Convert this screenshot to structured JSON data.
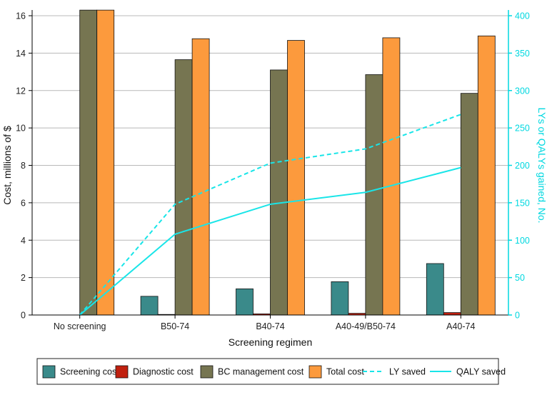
{
  "chart_data": {
    "type": "bar",
    "categories": [
      "No screening",
      "B50-74",
      "B40-74",
      "A40-49/B50-74",
      "A40-74"
    ],
    "series": [
      {
        "name": "Screening cost",
        "kind": "bar",
        "axis": "left",
        "color": "#3a8a8a",
        "values": [
          0,
          1.0,
          1.4,
          1.78,
          2.75
        ]
      },
      {
        "name": "Diagnostic cost",
        "kind": "bar",
        "axis": "left",
        "color": "#c0200f",
        "values": [
          0,
          0.03,
          0.06,
          0.09,
          0.13
        ]
      },
      {
        "name": "BC management cost",
        "kind": "bar",
        "axis": "left",
        "color": "#767551",
        "values": [
          16.3,
          13.65,
          13.1,
          12.85,
          11.85
        ]
      },
      {
        "name": "Total cost",
        "kind": "bar",
        "axis": "left",
        "color": "#fc9a3d",
        "values": [
          16.3,
          14.77,
          14.68,
          14.82,
          14.92
        ]
      },
      {
        "name": "LY saved",
        "kind": "line",
        "style": "dashed",
        "axis": "right",
        "color": "#19e5e8",
        "values": [
          0,
          148,
          203,
          222,
          268
        ]
      },
      {
        "name": "QALY saved",
        "kind": "line",
        "style": "solid",
        "axis": "right",
        "color": "#19e5e8",
        "values": [
          0,
          108,
          148,
          164,
          197
        ]
      }
    ],
    "xlabel": "Screening regimen",
    "ylabel": "Cost, millions of $",
    "y2label": "LYs or QALYs gained, No.",
    "ylim": [
      0,
      16
    ],
    "y2lim": [
      0,
      400
    ],
    "yticks": [
      0,
      2,
      4,
      6,
      8,
      10,
      12,
      14,
      16
    ],
    "y2ticks": [
      0,
      50,
      100,
      150,
      200,
      250,
      300,
      350,
      400
    ],
    "grid": true,
    "legend_position": "bottom"
  },
  "colors": {
    "axis": "#000000",
    "grid": "#b8b8b8",
    "right_axis": "#00d8e0"
  }
}
